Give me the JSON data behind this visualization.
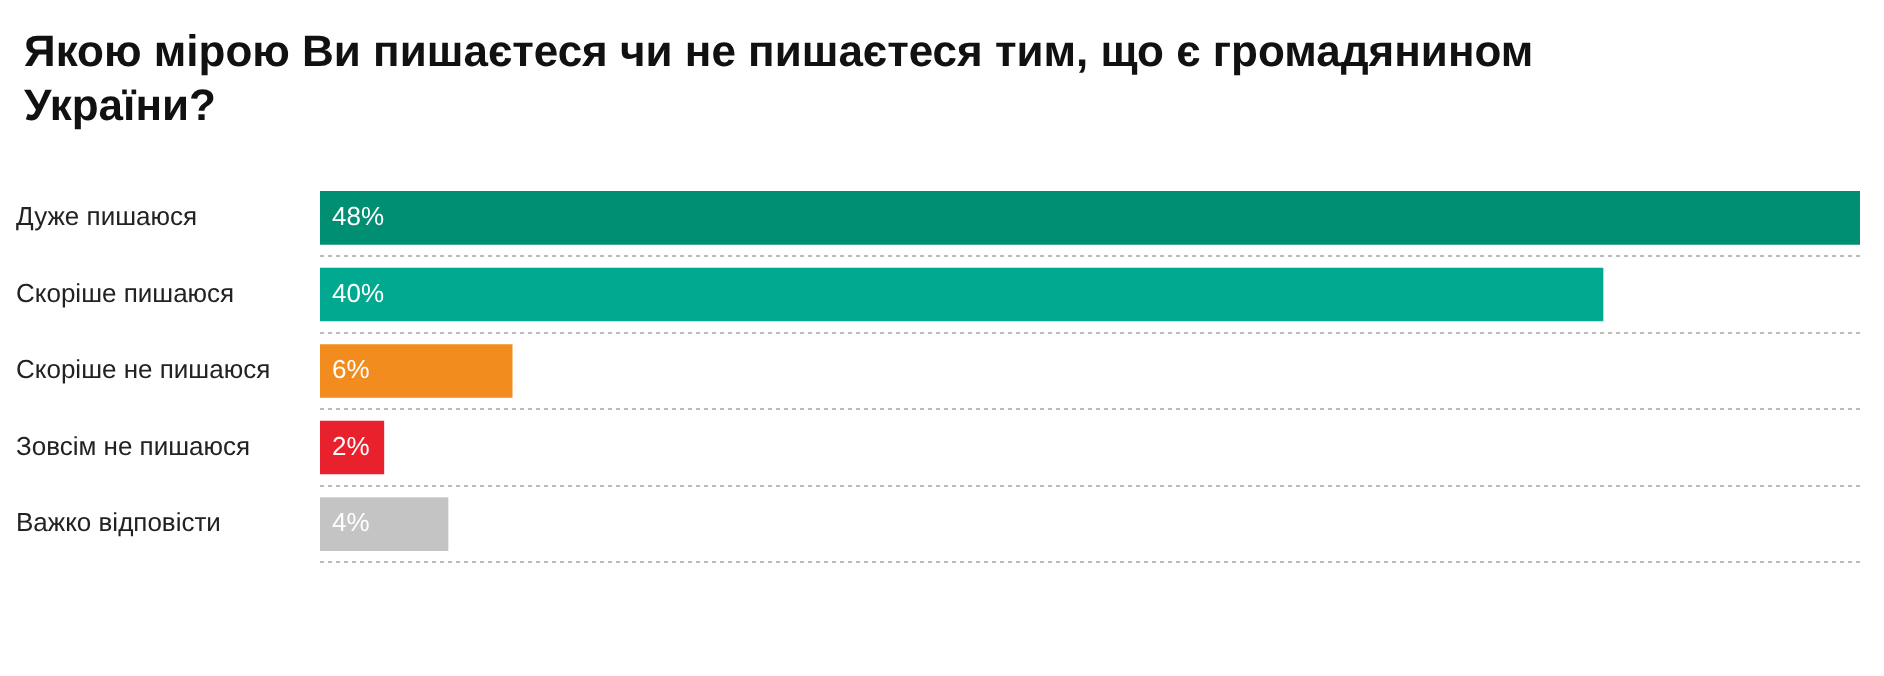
{
  "chart_data": {
    "type": "bar",
    "orientation": "horizontal",
    "title": "Якою мірою Ви пишаєтеся чи не пишаєтеся тим, що є громадянином України?",
    "categories": [
      "Дуже пишаюся",
      "Скоріше пишаюся",
      "Скоріше не пишаюся",
      "Зовсім не пишаюся",
      "Важко відповісти"
    ],
    "values": [
      48,
      40,
      6,
      2,
      4
    ],
    "value_labels": [
      "48%",
      "40%",
      "6%",
      "2%",
      "4%"
    ],
    "colors": [
      "#008f72",
      "#00a98f",
      "#f28c1e",
      "#e8212d",
      "#c4c4c4"
    ],
    "grid": "y",
    "legend": false
  }
}
